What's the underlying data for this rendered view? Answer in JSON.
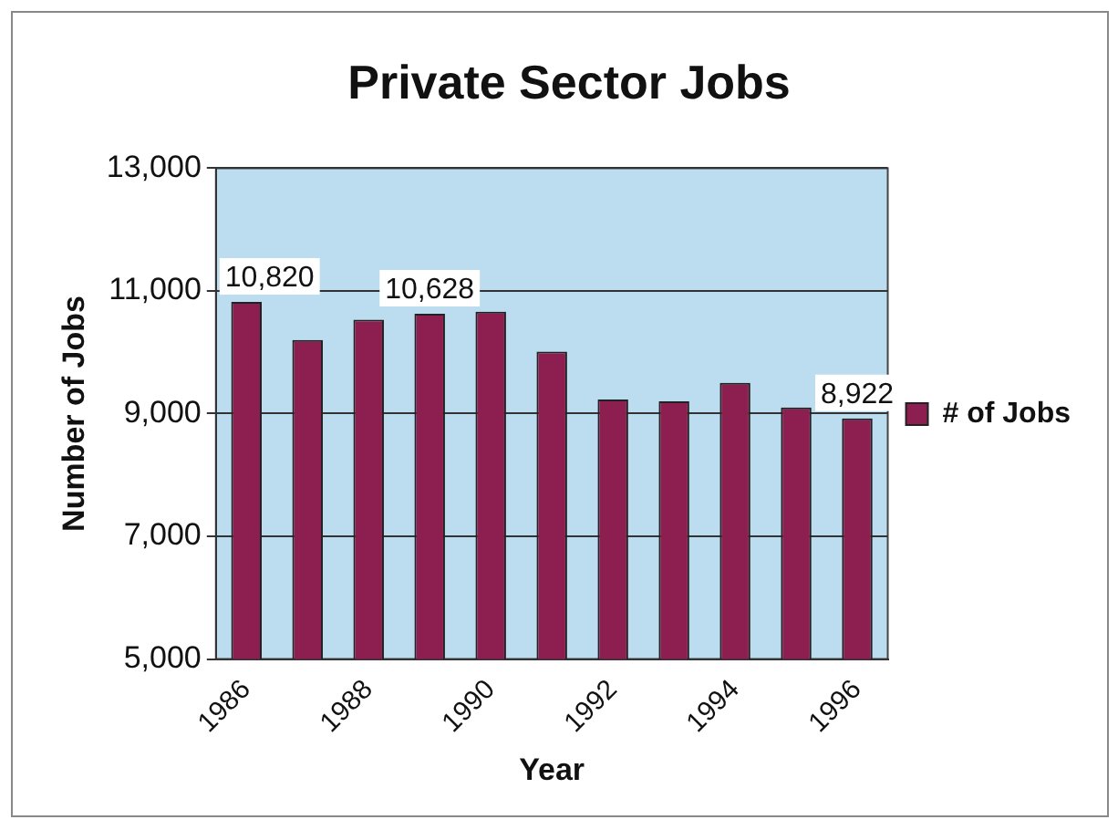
{
  "chart_data": {
    "type": "bar",
    "title": "Private Sector Jobs",
    "xlabel": "Year",
    "ylabel": "Number of Jobs",
    "categories": [
      "1986",
      null,
      "1988",
      null,
      "1990",
      null,
      "1992",
      null,
      "1994",
      null,
      "1996"
    ],
    "series": [
      {
        "name": "# of Jobs",
        "color": "#8c1f4f",
        "values": [
          10820,
          10200,
          10530,
          10628,
          10660,
          10010,
          9230,
          9200,
          9500,
          9100,
          8922
        ],
        "value_labels": [
          "10,820",
          null,
          null,
          "10,628",
          null,
          null,
          null,
          null,
          null,
          null,
          "8,922"
        ]
      }
    ],
    "ylim": [
      5000,
      13000
    ],
    "yticks": [
      {
        "value": 5000,
        "label": "5,000"
      },
      {
        "value": 7000,
        "label": "7,000"
      },
      {
        "value": 9000,
        "label": "9,000"
      },
      {
        "value": 11000,
        "label": "11,000"
      },
      {
        "value": 13000,
        "label": "13,000"
      }
    ],
    "grid": "y",
    "legend": "right"
  }
}
